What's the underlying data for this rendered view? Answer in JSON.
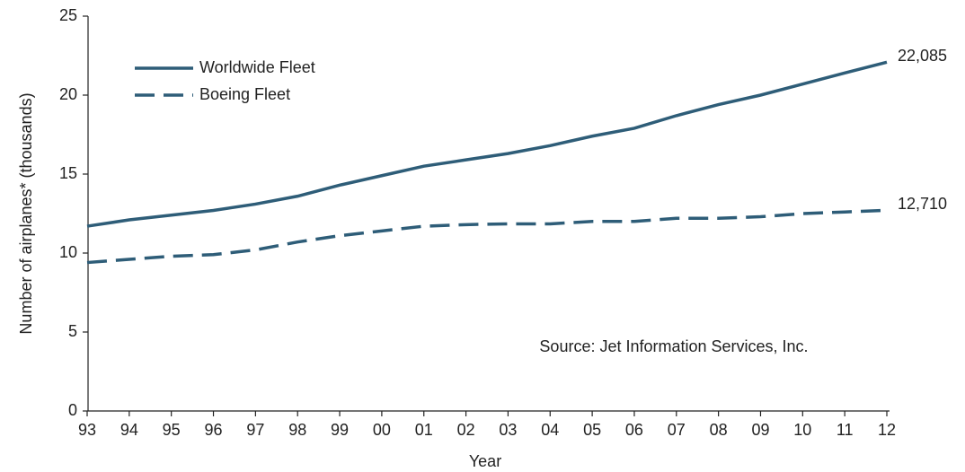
{
  "chart_data": {
    "type": "line",
    "y_label": "Number of airplanes* (thousands)",
    "x_label": "Year",
    "annotation": "Source: Jet Information Services, Inc.",
    "categories": [
      "93",
      "94",
      "95",
      "96",
      "97",
      "98",
      "99",
      "00",
      "01",
      "02",
      "03",
      "04",
      "05",
      "06",
      "07",
      "08",
      "09",
      "10",
      "11",
      "12"
    ],
    "series": [
      {
        "name": "Worldwide Fleet",
        "color": "#2e5d78",
        "style": "solid",
        "values": [
          11.7,
          12.1,
          12.4,
          12.7,
          13.1,
          13.6,
          14.3,
          14.9,
          15.5,
          15.9,
          16.3,
          16.8,
          17.4,
          17.9,
          18.7,
          19.4,
          20.0,
          20.7,
          21.4,
          22.085
        ],
        "value_labels": [
          null,
          null,
          null,
          null,
          null,
          null,
          null,
          null,
          null,
          null,
          null,
          null,
          null,
          null,
          null,
          null,
          null,
          null,
          null,
          "22,085"
        ]
      },
      {
        "name": "Boeing Fleet",
        "color": "#2e5d78",
        "style": "dashed",
        "values": [
          9.4,
          9.6,
          9.8,
          9.9,
          10.2,
          10.7,
          11.1,
          11.4,
          11.7,
          11.8,
          11.85,
          11.85,
          12.0,
          12.0,
          12.2,
          12.2,
          12.3,
          12.5,
          12.6,
          12.71
        ],
        "value_labels": [
          null,
          null,
          null,
          null,
          null,
          null,
          null,
          null,
          null,
          null,
          null,
          null,
          null,
          null,
          null,
          null,
          null,
          null,
          null,
          "12,710"
        ]
      }
    ],
    "ylim": [
      0,
      25
    ],
    "yticks": [
      0,
      5,
      10,
      15,
      20,
      25
    ],
    "legend": "upper left",
    "grid": false
  }
}
